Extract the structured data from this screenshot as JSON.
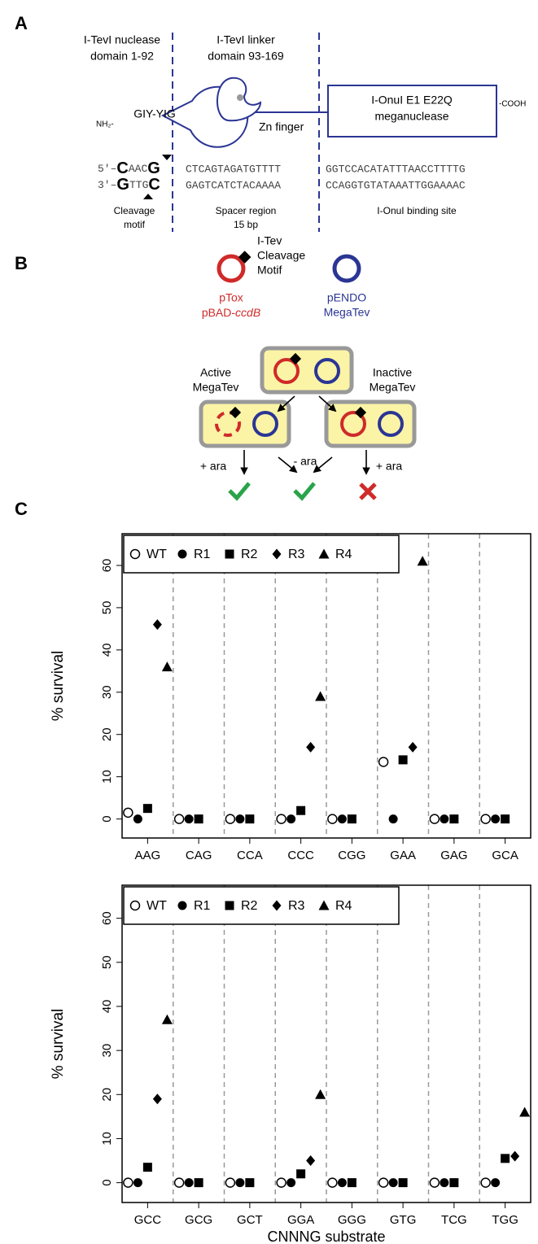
{
  "panel_a": {
    "label": "A",
    "nuclease": [
      "I-TevI nuclease",
      "domain 1-92"
    ],
    "linker": [
      "I-TevI linker",
      "domain 93-169"
    ],
    "motif_domain": "GIY-YIG",
    "n_term": "NH₂-",
    "zn": "Zn finger",
    "meganuclease": [
      "I-OnuI E1 E22Q",
      "meganuclease"
    ],
    "c_term": "-COOH",
    "top_strand": {
      "prime": "5′–",
      "motif": [
        "C",
        "AAC",
        "G"
      ],
      "spacer": "CTCAGTAGATGTTTT",
      "site": "GGTCCACATATTTAACCTTTTG"
    },
    "bottom_strand": {
      "prime": "3′–",
      "motif": [
        "G",
        "TTG",
        "C"
      ],
      "spacer": "GAGTCATCTACAAAA",
      "site": "CCAGGTGTATAAATTGGAAAAC"
    },
    "captions": {
      "motif": [
        "Cleavage",
        "motif"
      ],
      "spacer": [
        "Spacer region",
        "15 bp"
      ],
      "site": "I-OnuI binding site"
    }
  },
  "panel_b": {
    "label": "B",
    "cleavage": [
      "I-Tev",
      "Cleavage",
      "Motif"
    ],
    "ptox": [
      "pTox",
      "pBAD-",
      "ccdB"
    ],
    "pendo": [
      "pENDO",
      "MegaTev"
    ],
    "active": [
      "Active",
      "MegaTev"
    ],
    "inactive": [
      "Inactive",
      "MegaTev"
    ],
    "plus_ara": "+ ara",
    "minus_ara": "- ara"
  },
  "panel_c": {
    "label": "C"
  },
  "chart_data": [
    {
      "type": "scatter",
      "ylabel": "% survival",
      "categories": [
        "AAG",
        "CAG",
        "CCA",
        "CCC",
        "CGG",
        "GAA",
        "GAG",
        "GCA"
      ],
      "series": [
        {
          "name": "WT",
          "marker": "open-circle",
          "color": "#000000",
          "values": [
            1.5,
            0,
            0,
            0,
            0,
            13.5,
            0,
            0
          ]
        },
        {
          "name": "R1",
          "marker": "circle",
          "color": "#000000",
          "values": [
            0,
            0,
            0,
            0,
            0,
            0,
            0,
            0
          ]
        },
        {
          "name": "R2",
          "marker": "square",
          "color": "#000000",
          "values": [
            2.5,
            0,
            0,
            2,
            0,
            14,
            0,
            0
          ]
        },
        {
          "name": "R3",
          "marker": "diamond",
          "color": "#000000",
          "values": [
            46,
            null,
            null,
            17,
            null,
            17,
            null,
            null
          ]
        },
        {
          "name": "R4",
          "marker": "triangle",
          "color": "#000000",
          "values": [
            36,
            null,
            null,
            29,
            null,
            61,
            null,
            null
          ]
        }
      ],
      "ylim": [
        -4.5,
        67.5
      ],
      "yticks": [
        0,
        10,
        20,
        30,
        40,
        50,
        60
      ],
      "legend": "top-left"
    },
    {
      "type": "scatter",
      "ylabel": "% survival",
      "xlabel": "CNNNG substrate",
      "categories": [
        "GCC",
        "GCG",
        "GCT",
        "GGA",
        "GGG",
        "GTG",
        "TCG",
        "TGG"
      ],
      "series": [
        {
          "name": "WT",
          "marker": "open-circle",
          "color": "#000000",
          "values": [
            0,
            0,
            0,
            0,
            0,
            0,
            0,
            0
          ]
        },
        {
          "name": "R1",
          "marker": "circle",
          "color": "#000000",
          "values": [
            0,
            0,
            0,
            0,
            0,
            0,
            0,
            0
          ]
        },
        {
          "name": "R2",
          "marker": "square",
          "color": "#000000",
          "values": [
            3.5,
            0,
            0,
            2,
            0,
            0,
            0,
            5.5
          ]
        },
        {
          "name": "R3",
          "marker": "diamond",
          "color": "#000000",
          "values": [
            19,
            null,
            null,
            5,
            null,
            null,
            null,
            6
          ]
        },
        {
          "name": "R4",
          "marker": "triangle",
          "color": "#000000",
          "values": [
            37,
            null,
            null,
            20,
            null,
            null,
            null,
            16
          ]
        }
      ],
      "ylim": [
        -4.5,
        67.5
      ],
      "yticks": [
        0,
        10,
        20,
        30,
        40,
        50,
        60
      ],
      "legend": "top-left"
    }
  ]
}
